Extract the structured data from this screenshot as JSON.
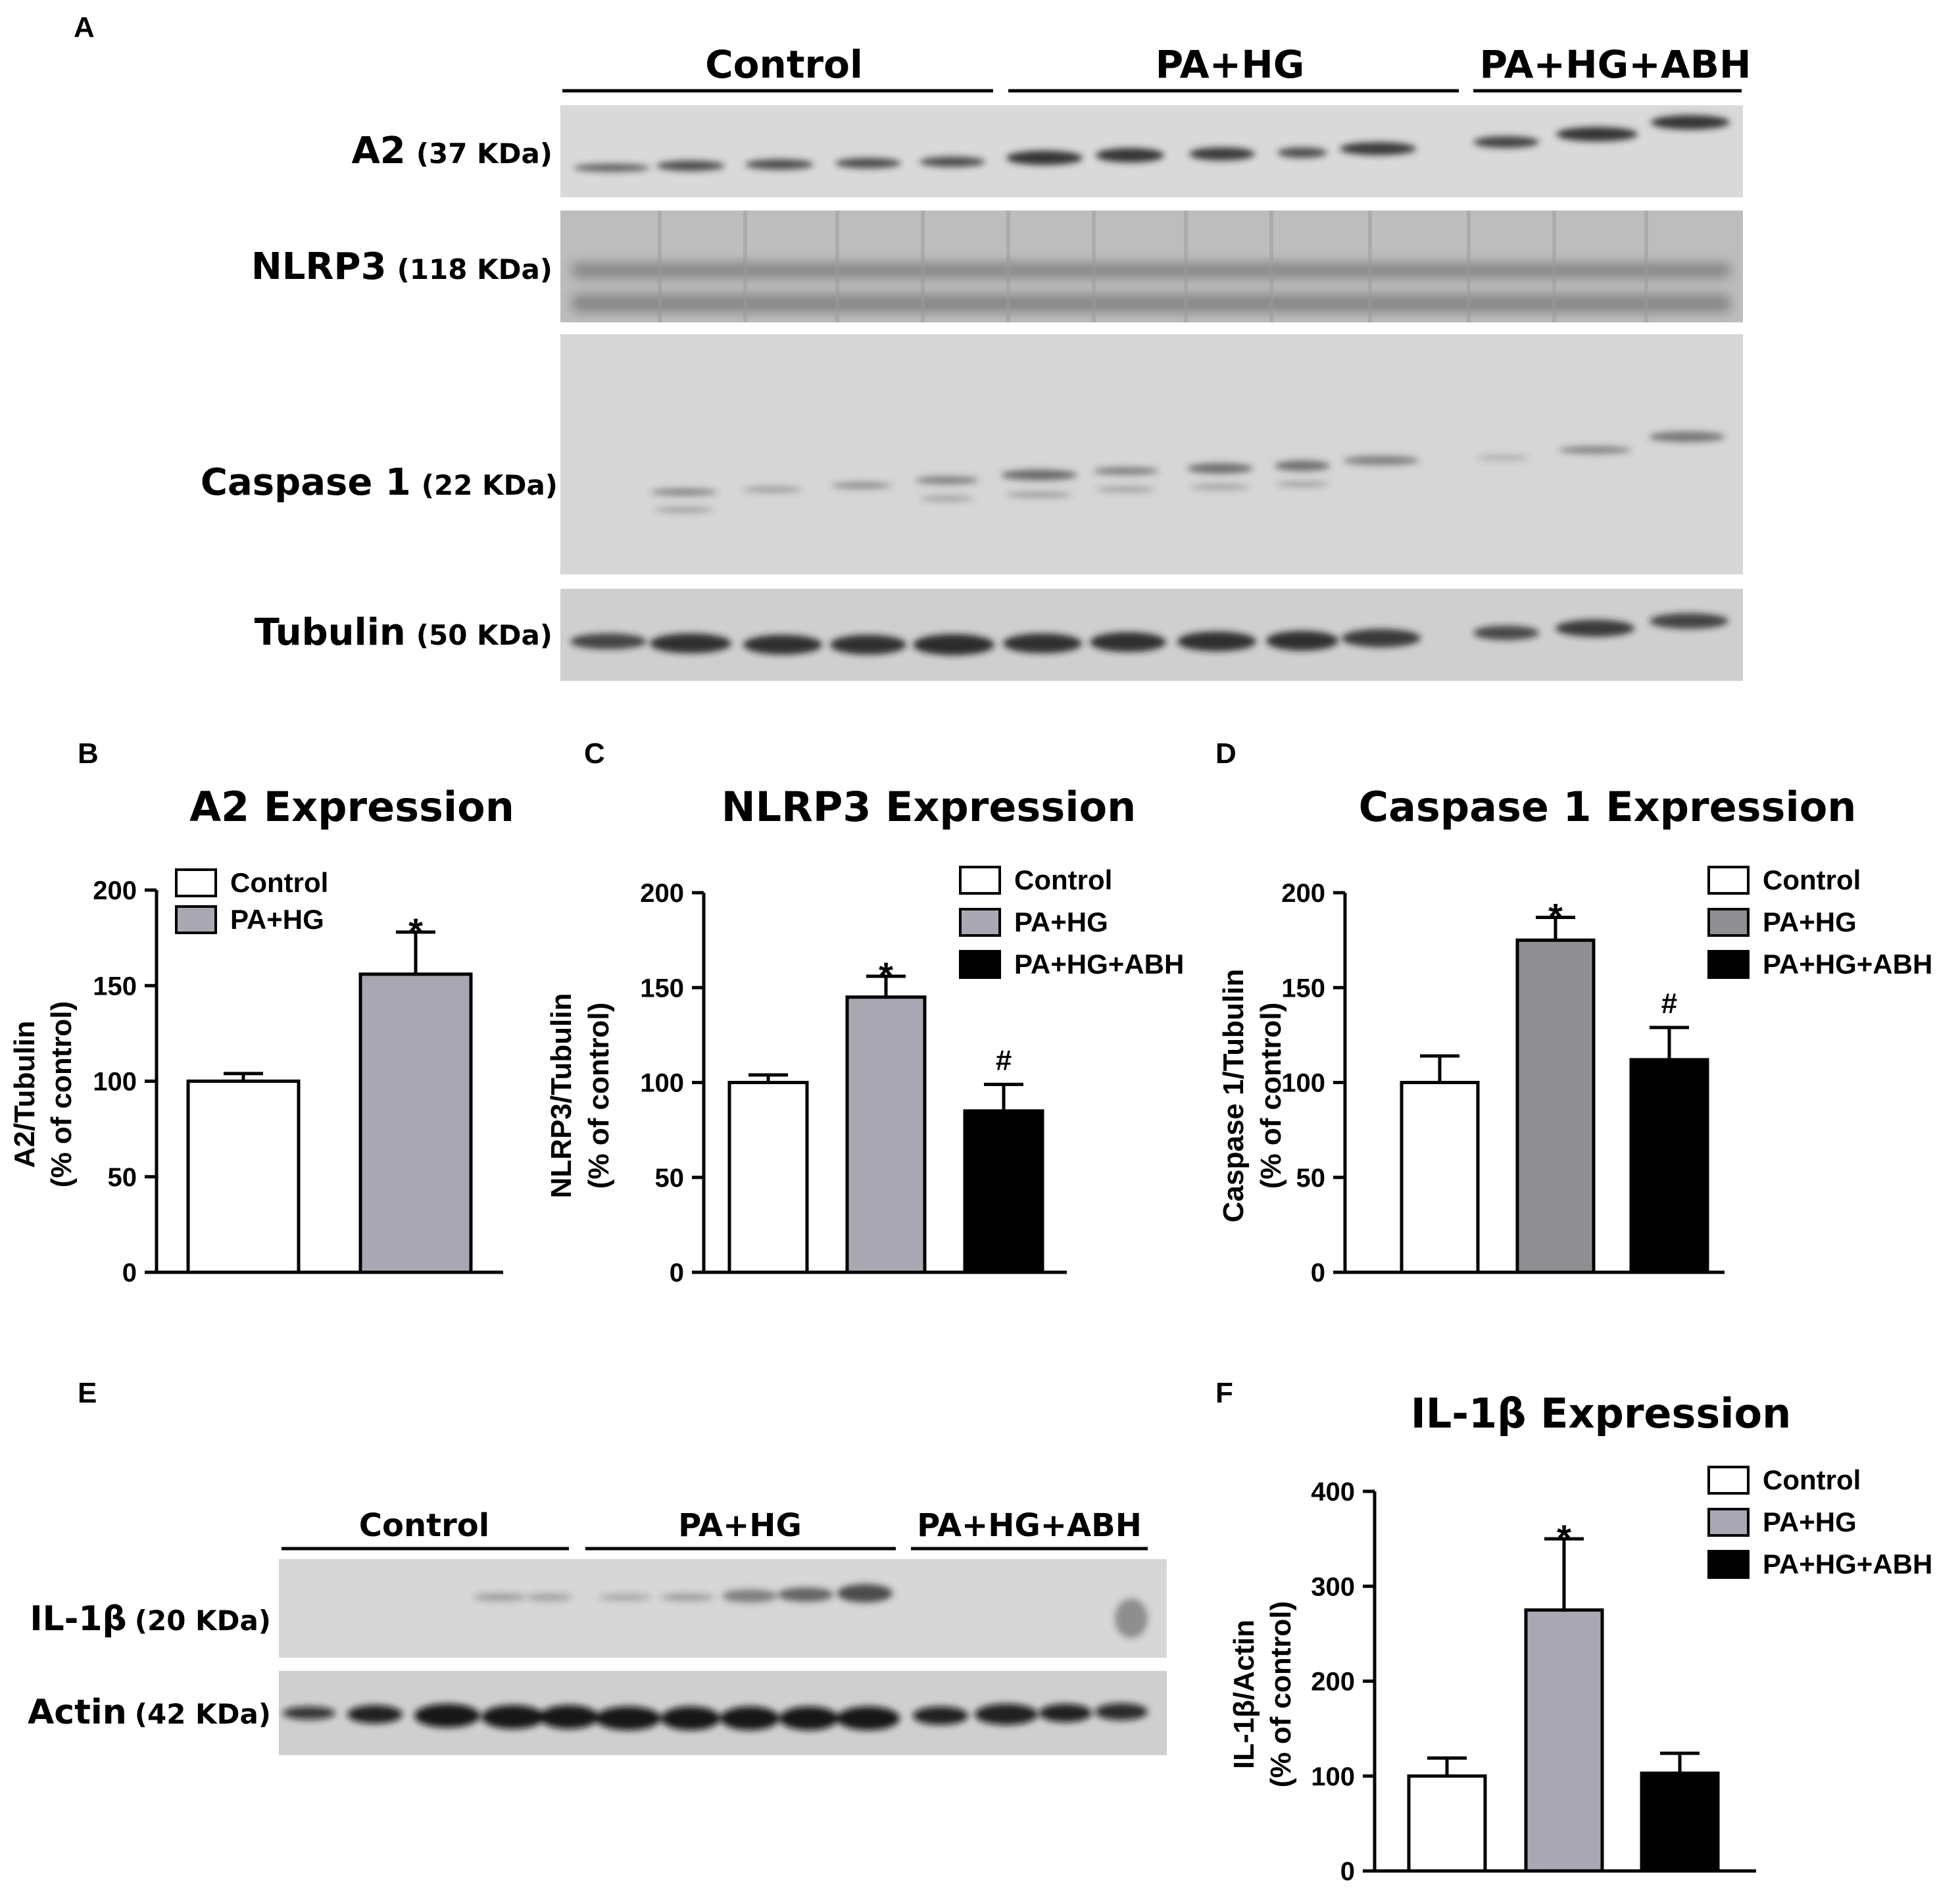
{
  "panels": {
    "A": "A",
    "B": "B",
    "C": "C",
    "D": "D",
    "E": "E",
    "F": "F"
  },
  "blot_A": {
    "groups": [
      "Control",
      "PA+HG",
      "PA+HG+ABH"
    ],
    "rows": [
      {
        "name": "A2",
        "kda": "(37 KDa)"
      },
      {
        "name": "NLRP3",
        "kda": "(118 KDa)"
      },
      {
        "name": "Caspase 1",
        "kda": "(22 KDa)"
      },
      {
        "name": "Tubulin",
        "kda": "(50 KDa)"
      }
    ]
  },
  "blot_E": {
    "groups": [
      "Control",
      "PA+HG",
      "PA+HG+ABH"
    ],
    "rows": [
      {
        "name": "IL-1β",
        "kda": "(20 KDa)"
      },
      {
        "name": "Actin",
        "kda": "(42 KDa)"
      }
    ]
  },
  "chart_data": [
    {
      "panel": "B",
      "type": "bar",
      "title": "A2 Expression",
      "ylabel": "A2/Tubulin",
      "ylabel2": "(% of control)",
      "categories": [
        "Control",
        "PA+HG"
      ],
      "values": [
        100,
        156
      ],
      "errors": [
        4,
        22
      ],
      "colors": [
        "#ffffff",
        "#a9a8b2"
      ],
      "significance": [
        "",
        "*"
      ],
      "ylim": [
        0,
        200
      ],
      "yticks": [
        0,
        50,
        100,
        150,
        200
      ],
      "legend": [
        "Control",
        "PA+HG"
      ],
      "legend_position": "top-left"
    },
    {
      "panel": "C",
      "type": "bar",
      "title": "NLRP3 Expression",
      "ylabel": "NLRP3/Tubulin",
      "ylabel2": "(% of control)",
      "categories": [
        "Control",
        "PA+HG",
        "PA+HG+ABH"
      ],
      "values": [
        100,
        145,
        85
      ],
      "errors": [
        4,
        11,
        14
      ],
      "colors": [
        "#ffffff",
        "#a9a8b2",
        "#000000"
      ],
      "significance": [
        "",
        "*",
        "#"
      ],
      "ylim": [
        0,
        200
      ],
      "yticks": [
        0,
        50,
        100,
        150,
        200
      ],
      "legend": [
        "Control",
        "PA+HG",
        "PA+HG+ABH"
      ],
      "legend_position": "top-right"
    },
    {
      "panel": "D",
      "type": "bar",
      "title": "Caspase 1 Expression",
      "ylabel": "Caspase 1/Tubulin",
      "ylabel2": "(% of control)",
      "categories": [
        "Control",
        "PA+HG",
        "PA+HG+ABH"
      ],
      "values": [
        100,
        175,
        112
      ],
      "errors": [
        14,
        12,
        17
      ],
      "colors": [
        "#ffffff",
        "#8f8f93",
        "#000000"
      ],
      "significance": [
        "",
        "*",
        "#"
      ],
      "ylim": [
        0,
        200
      ],
      "yticks": [
        0,
        50,
        100,
        150,
        200
      ],
      "legend": [
        "Control",
        "PA+HG",
        "PA+HG+ABH"
      ],
      "legend_position": "top-right"
    },
    {
      "panel": "F",
      "type": "bar",
      "title": "IL-1β Expression",
      "ylabel": "IL-1β/Actin",
      "ylabel2": "(% of control)",
      "categories": [
        "Control",
        "PA+HG",
        "PA+HG+ABH"
      ],
      "values": [
        100,
        275,
        103
      ],
      "errors": [
        19,
        75,
        21
      ],
      "colors": [
        "#ffffff",
        "#a9a8b2",
        "#000000"
      ],
      "significance": [
        "",
        "*",
        ""
      ],
      "ylim": [
        0,
        400
      ],
      "yticks": [
        0,
        100,
        200,
        300,
        400
      ],
      "legend": [
        "Control",
        "PA+HG",
        "PA+HG+ABH"
      ],
      "legend_position": "top-right"
    }
  ]
}
